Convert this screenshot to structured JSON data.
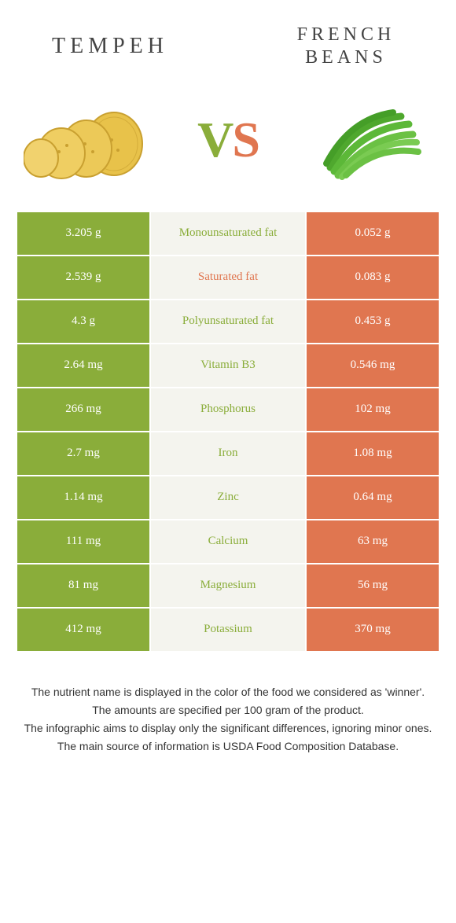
{
  "header": {
    "left_title": "TEMPEH",
    "right_title": "FRENCH BEANS",
    "vs_v": "V",
    "vs_s": "S"
  },
  "colors": {
    "green": "#8aad3a",
    "orange": "#e07650",
    "mid_bg": "#f4f4ee",
    "text": "#333333"
  },
  "table": {
    "rows": [
      {
        "left": "3.205 g",
        "label": "Monounsaturated fat",
        "right": "0.052 g",
        "winner": "green"
      },
      {
        "left": "2.539 g",
        "label": "Saturated fat",
        "right": "0.083 g",
        "winner": "orange"
      },
      {
        "left": "4.3 g",
        "label": "Polyunsaturated fat",
        "right": "0.453 g",
        "winner": "green"
      },
      {
        "left": "2.64 mg",
        "label": "Vitamin B3",
        "right": "0.546 mg",
        "winner": "green"
      },
      {
        "left": "266 mg",
        "label": "Phosphorus",
        "right": "102 mg",
        "winner": "green"
      },
      {
        "left": "2.7 mg",
        "label": "Iron",
        "right": "1.08 mg",
        "winner": "green"
      },
      {
        "left": "1.14 mg",
        "label": "Zinc",
        "right": "0.64 mg",
        "winner": "green"
      },
      {
        "left": "111 mg",
        "label": "Calcium",
        "right": "63 mg",
        "winner": "green"
      },
      {
        "left": "81 mg",
        "label": "Magnesium",
        "right": "56 mg",
        "winner": "green"
      },
      {
        "left": "412 mg",
        "label": "Potassium",
        "right": "370 mg",
        "winner": "green"
      }
    ]
  },
  "footer": {
    "line1": "The nutrient name is displayed in the color of the food we considered as 'winner'.",
    "line2": "The amounts are specified per 100 gram of the product.",
    "line3": "The infographic aims to display only the significant differences, ignoring minor ones.",
    "line4": "The main source of information is USDA Food Composition Database."
  }
}
